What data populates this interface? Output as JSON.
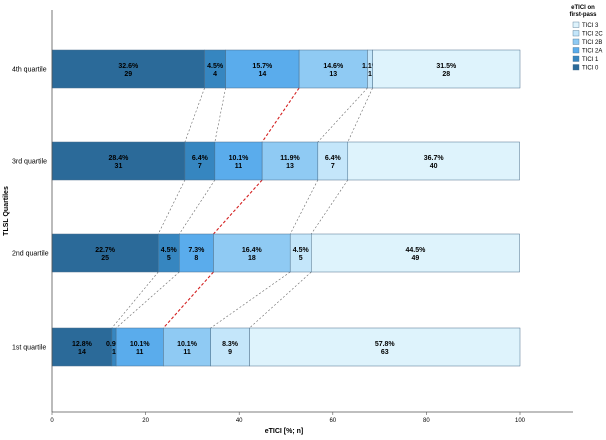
{
  "chart_data": {
    "type": "bar",
    "orientation": "horizontal",
    "stacked": true,
    "title": "",
    "xlabel": "eTICI [%; n]",
    "ylabel": "TLSL Quartiles",
    "xlim": [
      0,
      100
    ],
    "xticks": [
      "0",
      "20",
      "40",
      "60",
      "80",
      "100"
    ],
    "grid": false,
    "legend_title": "eTICI on first-pass",
    "legend_position": "top-right",
    "categories": [
      "4th quartile",
      "3rd quartile",
      "2nd quartile",
      "1st quartile"
    ],
    "series": [
      {
        "name": "TICI 0",
        "color": "#2b6a99",
        "values": [
          32.6,
          28.4,
          22.7,
          12.8
        ],
        "labels": [
          "32.6%",
          "28.4%",
          "22.7%",
          "12.8%"
        ],
        "counts": [
          "29",
          "31",
          "25",
          "14"
        ]
      },
      {
        "name": "TICI 1",
        "color": "#3686c0",
        "values": [
          4.5,
          6.4,
          4.5,
          0.9
        ],
        "labels": [
          "4.5%",
          "6.4%",
          "4.5%",
          "0.9%"
        ],
        "counts": [
          "4",
          "7",
          "5",
          "1"
        ]
      },
      {
        "name": "TICI 2A",
        "color": "#5aacec",
        "values": [
          15.7,
          10.1,
          7.3,
          10.1
        ],
        "labels": [
          "15.7%",
          "10.1%",
          "7.3%",
          "10.1%"
        ],
        "counts": [
          "14",
          "11",
          "8",
          "11"
        ]
      },
      {
        "name": "TICI 2B",
        "color": "#8fcaf3",
        "values": [
          14.6,
          11.9,
          16.4,
          10.1
        ],
        "labels": [
          "14.6%",
          "11.9%",
          "16.4%",
          "10.1%"
        ],
        "counts": [
          "13",
          "13",
          "18",
          "11"
        ]
      },
      {
        "name": "TICI 2C",
        "color": "#c4e6fa",
        "values": [
          1.1,
          6.4,
          4.5,
          8.3
        ],
        "labels": [
          "1.1%",
          "6.4%",
          "4.5%",
          "8.3%"
        ],
        "counts": [
          "1",
          "7",
          "5",
          "9"
        ]
      },
      {
        "name": "TICI 3",
        "color": "#def3fc",
        "values": [
          31.5,
          36.7,
          44.5,
          57.8
        ],
        "labels": [
          "31.5%",
          "36.7%",
          "44.5%",
          "57.8%"
        ],
        "counts": [
          "28",
          "40",
          "49",
          "63"
        ]
      }
    ],
    "connector_lines": "dashed lines link segment boundaries between adjacent bars; boundary after TICI 2A highlighted red"
  }
}
